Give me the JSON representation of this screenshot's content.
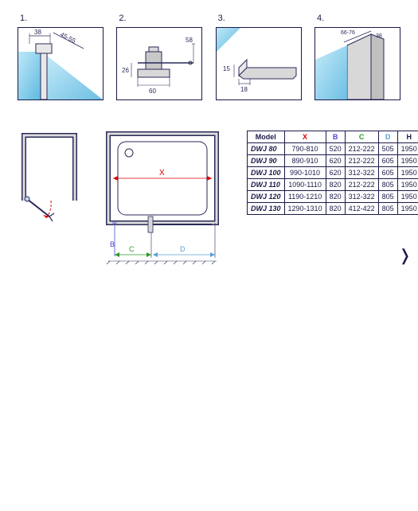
{
  "palette": {
    "line": "#2a2a5a",
    "glass1": "#bfe8f8",
    "glass2": "#5cb8e0",
    "metal1": "#f0f0f0",
    "metal2": "#b8b8b8",
    "red": "#d00",
    "blue": "#4a4ad0",
    "green": "#2a9a2a",
    "cyan": "#5aa0d8"
  },
  "details": [
    {
      "num": "1.",
      "dims": {
        "a": "38",
        "b": "45-55"
      }
    },
    {
      "num": "2.",
      "dims": {
        "h": "58",
        "v": "26",
        "w": "60"
      }
    },
    {
      "num": "3.",
      "dims": {
        "h": "15",
        "w": "18"
      }
    },
    {
      "num": "4.",
      "dims": {
        "a": "66-76",
        "b": "38"
      }
    }
  ],
  "plan": {
    "labels": {
      "x": "X",
      "b": "B",
      "c": "C",
      "d": "D"
    }
  },
  "table": {
    "head": [
      "Model",
      "X",
      "B",
      "C",
      "D",
      "H"
    ],
    "head_colors": [
      "",
      "c-x",
      "c-b",
      "c-c",
      "c-d",
      ""
    ],
    "rows": [
      [
        "DWJ 80",
        "790-810",
        "520",
        "212-222",
        "505",
        "1950"
      ],
      [
        "DWJ 90",
        "890-910",
        "620",
        "212-222",
        "605",
        "1950"
      ],
      [
        "DWJ 100",
        "990-1010",
        "620",
        "312-322",
        "605",
        "1950"
      ],
      [
        "DWJ 110",
        "1090-1110",
        "820",
        "212-222",
        "805",
        "1950"
      ],
      [
        "DWJ 120",
        "1190-1210",
        "820",
        "312-322",
        "805",
        "1950"
      ],
      [
        "DWJ 130",
        "1290-1310",
        "820",
        "412-422",
        "805",
        "1950"
      ]
    ]
  }
}
